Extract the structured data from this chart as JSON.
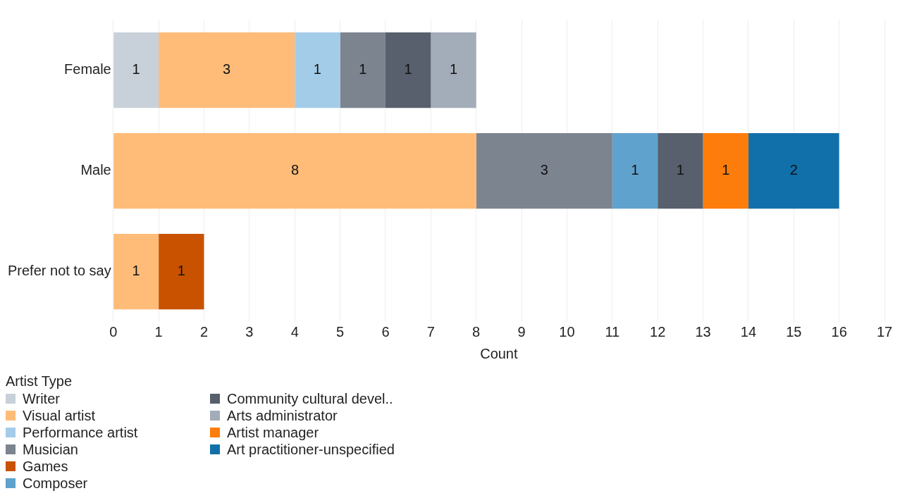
{
  "chart_data": {
    "type": "bar",
    "orientation": "horizontal",
    "stacked": true,
    "xlabel": "Count",
    "legend_title": "Artist Type",
    "legend": "bottom left",
    "grid": "x",
    "data_labels": true,
    "categories": [
      "Female",
      "Male",
      "Prefer not to say"
    ],
    "xlim": [
      0,
      17
    ],
    "xticks": [
      0,
      1,
      2,
      3,
      4,
      5,
      6,
      7,
      8,
      9,
      10,
      11,
      12,
      13,
      14,
      15,
      16,
      17
    ],
    "series": [
      {
        "name": "Writer",
        "color": "#c8d0d9",
        "values": [
          1,
          null,
          null
        ]
      },
      {
        "name": "Visual artist",
        "color": "#ffbc79",
        "values": [
          3,
          8,
          1
        ]
      },
      {
        "name": "Performance artist",
        "color": "#a3cce9",
        "values": [
          1,
          null,
          null
        ]
      },
      {
        "name": "Musician",
        "color": "#7b848f",
        "values": [
          1,
          3,
          null
        ]
      },
      {
        "name": "Games",
        "color": "#c85200",
        "values": [
          null,
          null,
          1
        ]
      },
      {
        "name": "Composer",
        "color": "#5fa2ce",
        "values": [
          null,
          1,
          null
        ]
      },
      {
        "name": "Community cultural devel..",
        "color": "#57606c",
        "values": [
          1,
          1,
          null
        ]
      },
      {
        "name": "Arts administrator",
        "color": "#a3acb9",
        "values": [
          1,
          null,
          null
        ]
      },
      {
        "name": "Artist manager",
        "color": "#fc7d0b",
        "values": [
          null,
          1,
          null
        ]
      },
      {
        "name": "Art practitioner-unspecified",
        "color": "#1170aa",
        "values": [
          null,
          2,
          null
        ]
      }
    ]
  }
}
